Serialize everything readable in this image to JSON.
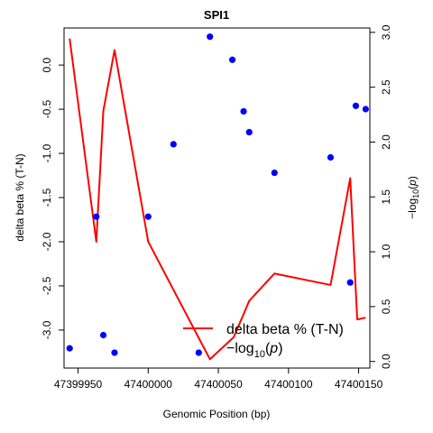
{
  "chart_data": {
    "type": "line+scatter",
    "title": "SPI1",
    "xlabel": "Genomic Position (bp)",
    "ylabel_left": "delta beta % (T-N)",
    "ylabel_right": "−log10(p)",
    "x_ticks": [
      47399950,
      47400000,
      47400050,
      47400100,
      47400150
    ],
    "x_tick_labels": [
      "47399950",
      "47400000",
      "47400050",
      "47400100",
      "47400150"
    ],
    "y_left_ticks": [
      0.0,
      -0.5,
      -1.0,
      -1.5,
      -2.0,
      -2.5,
      -3.0
    ],
    "y_left_tick_labels": [
      "0.0",
      "-0.5",
      "-1.0",
      "-1.5",
      "-2.0",
      "-2.5",
      "-3.0"
    ],
    "y_right_ticks": [
      0.0,
      0.5,
      1.0,
      1.5,
      2.0,
      2.5,
      3.0
    ],
    "y_right_tick_labels": [
      "0.0",
      "0.5",
      "1.0",
      "1.5",
      "2.0",
      "2.5",
      "3.0"
    ],
    "xlim": [
      47399940,
      47400158
    ],
    "ylim_left": [
      -3.43,
      0.42
    ],
    "ylim_right": [
      -0.06,
      3.04
    ],
    "series": [
      {
        "name": "delta beta % (T-N)",
        "kind": "line",
        "axis": "left",
        "color": "#ff0000",
        "x": [
          47399944,
          47399963,
          47399968,
          47399976,
          47400000,
          47400044,
          47400061,
          47400072,
          47400090,
          47400130,
          47400144,
          47400149,
          47400155
        ],
        "y": [
          0.3,
          -2.0,
          -0.52,
          0.17,
          -2.0,
          -3.33,
          -3.08,
          -2.67,
          -2.36,
          -2.49,
          -1.28,
          -2.88,
          -2.86
        ]
      },
      {
        "name": "−log10(p)",
        "kind": "points",
        "axis": "right",
        "color": "#0000ff",
        "x": [
          47399944,
          47399963,
          47399968,
          47399976,
          47400000,
          47400018,
          47400036,
          47400044,
          47400060,
          47400068,
          47400072,
          47400090,
          47400130,
          47400144,
          47400148,
          47400155
        ],
        "y": [
          0.12,
          1.32,
          0.24,
          0.08,
          1.32,
          1.98,
          0.08,
          2.96,
          2.75,
          2.28,
          2.09,
          1.72,
          1.86,
          0.72,
          2.33,
          2.3
        ]
      }
    ],
    "legend": {
      "position": "bottom-right",
      "entries": [
        {
          "label": "delta beta % (T-N)",
          "symbol": "line",
          "color": "#ff0000"
        },
        {
          "label": "−log10(p)",
          "symbol": "none",
          "color": "#000000"
        }
      ]
    },
    "grid": false
  }
}
